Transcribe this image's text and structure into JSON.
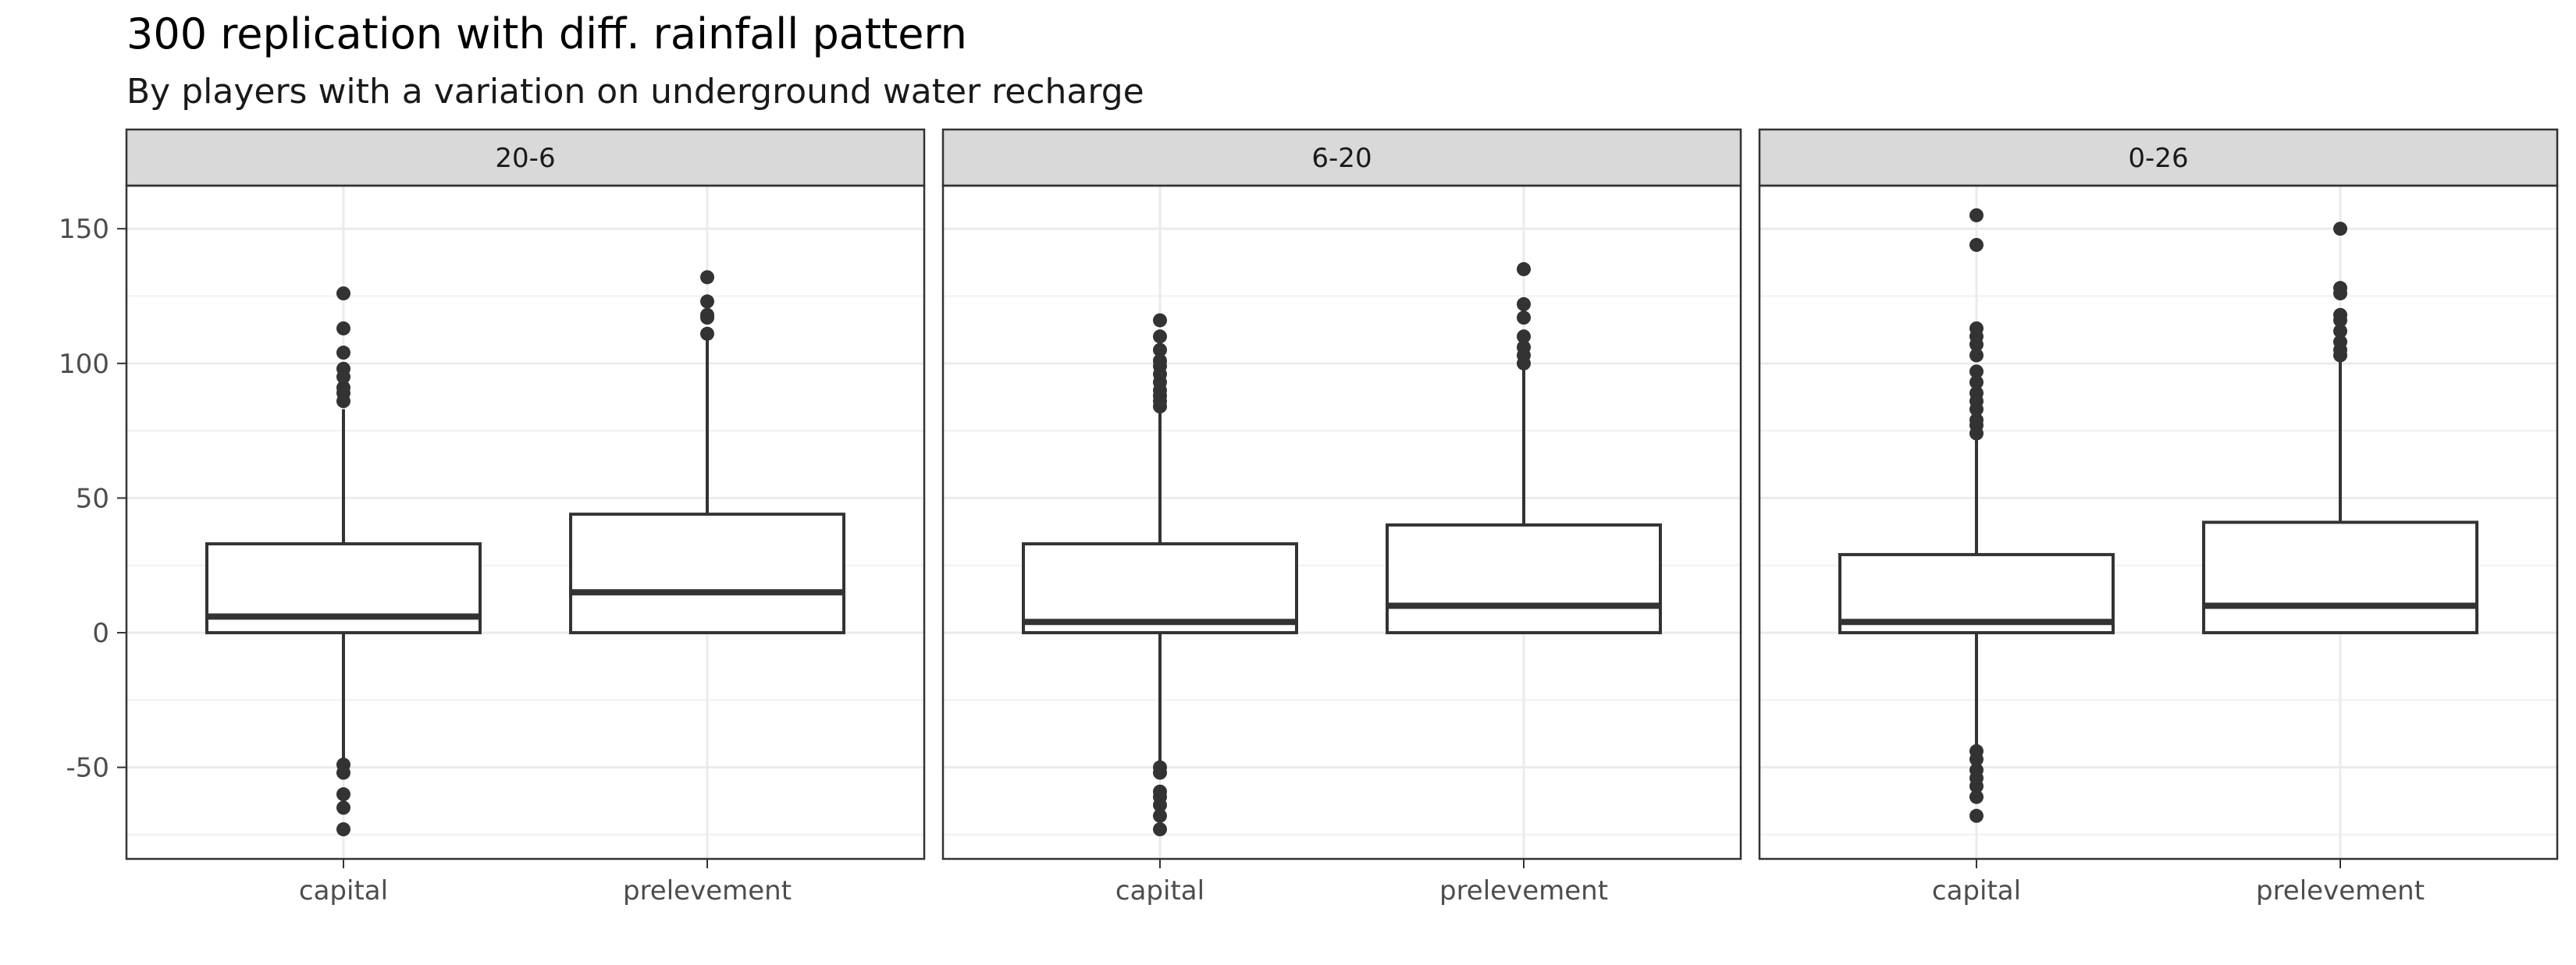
{
  "chart_data": {
    "type": "boxplot",
    "title": "300 replication with diff. rainfall pattern",
    "subtitle": "By players with a variation on underground water recharge",
    "xlabel": "",
    "ylabel": "",
    "ylim": [
      -84,
      166
    ],
    "y_ticks": [
      -50,
      0,
      50,
      100,
      150
    ],
    "y_tick_labels": [
      "-50",
      "0",
      "50",
      "100",
      "150"
    ],
    "categories": [
      "capital",
      "prelevement"
    ],
    "grid": true,
    "facets": [
      {
        "label": "20-6",
        "boxes": [
          {
            "category": "capital",
            "q1": 0,
            "median": 6,
            "q3": 33,
            "whisker_low": -48,
            "whisker_high": 83,
            "outliers": [
              -49,
              -52,
              -60,
              -65,
              -73,
              86,
              89,
              91,
              95,
              98,
              104,
              113,
              126
            ]
          },
          {
            "category": "prelevement",
            "q1": 0,
            "median": 15,
            "q3": 44,
            "whisker_low": 0,
            "whisker_high": 110,
            "outliers": [
              111,
              117,
              118,
              123,
              132
            ]
          }
        ]
      },
      {
        "label": "6-20",
        "boxes": [
          {
            "category": "capital",
            "q1": 0,
            "median": 4,
            "q3": 33,
            "whisker_low": -49,
            "whisker_high": 82,
            "outliers": [
              -50,
              -52,
              -59,
              -61,
              -64,
              -68,
              -73,
              84,
              86,
              88,
              90,
              93,
              96,
              99,
              101,
              105,
              110,
              116
            ]
          },
          {
            "category": "prelevement",
            "q1": 0,
            "median": 10,
            "q3": 40,
            "whisker_low": 0,
            "whisker_high": 98,
            "outliers": [
              100,
              103,
              106,
              110,
              117,
              122,
              135
            ]
          }
        ]
      },
      {
        "label": "0-26",
        "boxes": [
          {
            "category": "capital",
            "q1": 0,
            "median": 4,
            "q3": 29,
            "whisker_low": -43,
            "whisker_high": 72,
            "outliers": [
              -44,
              -47,
              -51,
              -54,
              -57,
              -61,
              -68,
              74,
              77,
              79,
              83,
              86,
              89,
              93,
              97,
              103,
              107,
              110,
              113,
              144,
              155
            ]
          },
          {
            "category": "prelevement",
            "q1": 0,
            "median": 10,
            "q3": 41,
            "whisker_low": 0,
            "whisker_high": 102,
            "outliers": [
              103,
              105,
              108,
              112,
              116,
              118,
              126,
              128,
              150
            ]
          }
        ]
      }
    ]
  }
}
